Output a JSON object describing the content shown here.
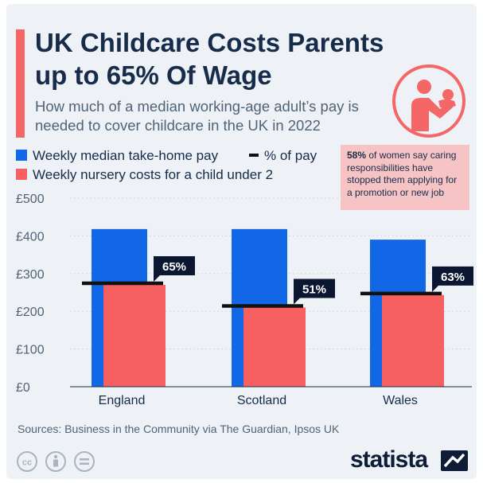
{
  "header": {
    "title": "UK Childcare Costs Parents up to 65% Of Wage",
    "subtitle": "How much of a median working-age adult’s pay is needed to cover childcare in the UK in 2022"
  },
  "legend": {
    "pay": "Weekly median take-home pay",
    "pct": "% of pay",
    "nursery": "Weekly nursery costs for a child under 2"
  },
  "callout": {
    "highlight": "58%",
    "text": " of women say caring responsibilities have stopped them applying for a promotion or new job"
  },
  "footer": {
    "source": "Sources: Business in the Community via The Guardian, Ipsos UK",
    "brand": "statista"
  },
  "icons": [
    "person-holding-baby-icon",
    "cc-icon",
    "attribution-icon",
    "no-derivatives-icon",
    "statista-logo-icon"
  ],
  "colors": {
    "pay": "#1167e6",
    "nursery": "#f66060",
    "marker": "#111111",
    "accent": "#f56666"
  },
  "chart_data": {
    "type": "bar",
    "categories": [
      "England",
      "Scotland",
      "Wales"
    ],
    "series": [
      {
        "name": "Weekly median take-home pay",
        "values": [
          418,
          418,
          390
        ]
      },
      {
        "name": "Weekly nursery costs for a child under 2",
        "values": [
          270,
          210,
          243
        ]
      }
    ],
    "percent_of_pay": [
      65,
      51,
      63
    ],
    "percent_labels": [
      "65%",
      "51%",
      "63%"
    ],
    "y_ticks": [
      0,
      100,
      200,
      300,
      400,
      500
    ],
    "y_tick_labels": [
      "£0",
      "£100",
      "£200",
      "£300",
      "£400",
      "£500"
    ],
    "ylim": [
      0,
      500
    ],
    "grid": true,
    "legend_position": "top-left"
  }
}
